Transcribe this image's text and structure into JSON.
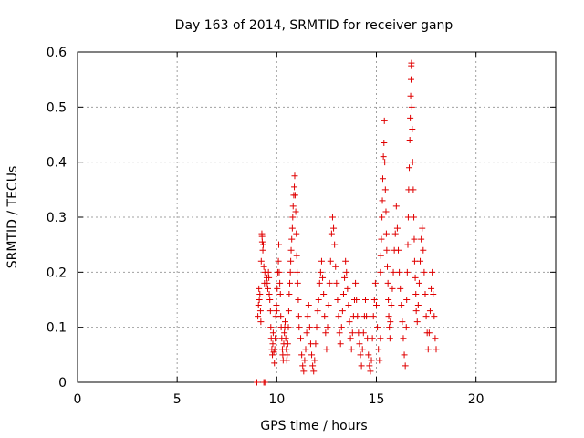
{
  "chart_data": {
    "type": "scatter",
    "title": "Day 163 of 2014, SRMTID for receiver ganp",
    "xlabel": "GPS time / hours",
    "ylabel": "SRMTID / TECUs",
    "xlim": [
      0,
      24
    ],
    "ylim": [
      0,
      0.6
    ],
    "xticks": [
      0,
      5,
      10,
      15,
      20
    ],
    "xtick_labels": [
      "0",
      "5",
      "10",
      "15",
      "20"
    ],
    "yticks": [
      0,
      0.1,
      0.2,
      0.3,
      0.4,
      0.5,
      0.6
    ],
    "ytick_labels": [
      "0",
      "0.1",
      "0.2",
      "0.3",
      "0.4",
      "0.5",
      "0.6"
    ],
    "grid": true,
    "marker": "+",
    "color": "#e00000",
    "series": [
      {
        "name": "",
        "points": [
          [
            9.0,
            0.0
          ],
          [
            9.35,
            0.0
          ],
          [
            9.4,
            0.0
          ],
          [
            9.05,
            0.12
          ],
          [
            9.08,
            0.14
          ],
          [
            9.1,
            0.17
          ],
          [
            9.12,
            0.15
          ],
          [
            9.15,
            0.16
          ],
          [
            9.18,
            0.13
          ],
          [
            9.2,
            0.11
          ],
          [
            9.22,
            0.22
          ],
          [
            9.25,
            0.27
          ],
          [
            9.26,
            0.265
          ],
          [
            9.27,
            0.255
          ],
          [
            9.3,
            0.24
          ],
          [
            9.32,
            0.25
          ],
          [
            9.35,
            0.21
          ],
          [
            9.38,
            0.18
          ],
          [
            9.4,
            0.2
          ],
          [
            9.5,
            0.19
          ],
          [
            9.52,
            0.18
          ],
          [
            9.55,
            0.17
          ],
          [
            9.58,
            0.2
          ],
          [
            9.6,
            0.19
          ],
          [
            9.62,
            0.16
          ],
          [
            9.65,
            0.15
          ],
          [
            9.68,
            0.13
          ],
          [
            9.7,
            0.1
          ],
          [
            9.72,
            0.08
          ],
          [
            9.75,
            0.06
          ],
          [
            9.78,
            0.05
          ],
          [
            9.8,
            0.07
          ],
          [
            9.82,
            0.09
          ],
          [
            9.85,
            0.055
          ],
          [
            9.88,
            0.035
          ],
          [
            9.9,
            0.06
          ],
          [
            9.92,
            0.08
          ],
          [
            9.95,
            0.12
          ],
          [
            9.98,
            0.14
          ],
          [
            10.0,
            0.13
          ],
          [
            10.02,
            0.17
          ],
          [
            10.05,
            0.2
          ],
          [
            10.08,
            0.22
          ],
          [
            10.1,
            0.25
          ],
          [
            10.12,
            0.2
          ],
          [
            10.15,
            0.18
          ],
          [
            10.18,
            0.16
          ],
          [
            10.2,
            0.12
          ],
          [
            10.22,
            0.1
          ],
          [
            10.25,
            0.08
          ],
          [
            10.28,
            0.06
          ],
          [
            10.3,
            0.05
          ],
          [
            10.32,
            0.04
          ],
          [
            10.35,
            0.07
          ],
          [
            10.38,
            0.09
          ],
          [
            10.4,
            0.1
          ],
          [
            10.42,
            0.11
          ],
          [
            10.45,
            0.08
          ],
          [
            10.48,
            0.06
          ],
          [
            10.5,
            0.04
          ],
          [
            10.52,
            0.05
          ],
          [
            10.55,
            0.07
          ],
          [
            10.58,
            0.1
          ],
          [
            10.6,
            0.13
          ],
          [
            10.62,
            0.16
          ],
          [
            10.65,
            0.18
          ],
          [
            10.68,
            0.2
          ],
          [
            10.7,
            0.22
          ],
          [
            10.72,
            0.24
          ],
          [
            10.75,
            0.26
          ],
          [
            10.78,
            0.28
          ],
          [
            10.8,
            0.3
          ],
          [
            10.82,
            0.32
          ],
          [
            10.85,
            0.34
          ],
          [
            10.88,
            0.355
          ],
          [
            10.9,
            0.375
          ],
          [
            10.92,
            0.34
          ],
          [
            10.95,
            0.31
          ],
          [
            10.98,
            0.27
          ],
          [
            11.0,
            0.23
          ],
          [
            11.02,
            0.2
          ],
          [
            11.05,
            0.18
          ],
          [
            11.08,
            0.15
          ],
          [
            11.1,
            0.12
          ],
          [
            11.12,
            0.1
          ],
          [
            11.2,
            0.08
          ],
          [
            11.25,
            0.05
          ],
          [
            11.3,
            0.03
          ],
          [
            11.35,
            0.02
          ],
          [
            11.4,
            0.04
          ],
          [
            11.45,
            0.06
          ],
          [
            11.5,
            0.09
          ],
          [
            11.55,
            0.12
          ],
          [
            11.6,
            0.14
          ],
          [
            11.65,
            0.1
          ],
          [
            11.7,
            0.07
          ],
          [
            11.75,
            0.05
          ],
          [
            11.8,
            0.03
          ],
          [
            11.85,
            0.02
          ],
          [
            11.9,
            0.04
          ],
          [
            11.95,
            0.07
          ],
          [
            12.0,
            0.1
          ],
          [
            12.05,
            0.13
          ],
          [
            12.1,
            0.15
          ],
          [
            12.15,
            0.18
          ],
          [
            12.2,
            0.2
          ],
          [
            12.25,
            0.22
          ],
          [
            12.3,
            0.19
          ],
          [
            12.35,
            0.16
          ],
          [
            12.4,
            0.12
          ],
          [
            12.45,
            0.09
          ],
          [
            12.5,
            0.06
          ],
          [
            12.55,
            0.1
          ],
          [
            12.6,
            0.14
          ],
          [
            12.65,
            0.18
          ],
          [
            12.7,
            0.22
          ],
          [
            12.75,
            0.27
          ],
          [
            12.8,
            0.3
          ],
          [
            12.85,
            0.28
          ],
          [
            12.9,
            0.25
          ],
          [
            12.95,
            0.21
          ],
          [
            13.0,
            0.18
          ],
          [
            13.05,
            0.15
          ],
          [
            13.1,
            0.12
          ],
          [
            13.15,
            0.09
          ],
          [
            13.2,
            0.07
          ],
          [
            13.25,
            0.1
          ],
          [
            13.3,
            0.13
          ],
          [
            13.35,
            0.16
          ],
          [
            13.4,
            0.19
          ],
          [
            13.45,
            0.22
          ],
          [
            13.5,
            0.2
          ],
          [
            13.55,
            0.17
          ],
          [
            13.6,
            0.14
          ],
          [
            13.65,
            0.11
          ],
          [
            13.7,
            0.08
          ],
          [
            13.75,
            0.06
          ],
          [
            13.8,
            0.09
          ],
          [
            13.85,
            0.12
          ],
          [
            13.9,
            0.15
          ],
          [
            13.95,
            0.18
          ],
          [
            14.0,
            0.15
          ],
          [
            14.05,
            0.12
          ],
          [
            14.1,
            0.09
          ],
          [
            14.15,
            0.07
          ],
          [
            14.2,
            0.05
          ],
          [
            14.25,
            0.03
          ],
          [
            14.3,
            0.06
          ],
          [
            14.35,
            0.09
          ],
          [
            14.4,
            0.12
          ],
          [
            14.45,
            0.15
          ],
          [
            14.5,
            0.12
          ],
          [
            14.55,
            0.08
          ],
          [
            14.6,
            0.05
          ],
          [
            14.65,
            0.03
          ],
          [
            14.7,
            0.02
          ],
          [
            14.75,
            0.04
          ],
          [
            14.8,
            0.08
          ],
          [
            14.85,
            0.12
          ],
          [
            14.9,
            0.15
          ],
          [
            14.95,
            0.18
          ],
          [
            15.0,
            0.14
          ],
          [
            15.05,
            0.1
          ],
          [
            15.1,
            0.06
          ],
          [
            15.15,
            0.04
          ],
          [
            15.2,
            0.08
          ],
          [
            15.2,
            0.2
          ],
          [
            15.22,
            0.23
          ],
          [
            15.25,
            0.26
          ],
          [
            15.28,
            0.3
          ],
          [
            15.3,
            0.33
          ],
          [
            15.32,
            0.37
          ],
          [
            15.35,
            0.41
          ],
          [
            15.38,
            0.435
          ],
          [
            15.4,
            0.475
          ],
          [
            15.42,
            0.4
          ],
          [
            15.45,
            0.35
          ],
          [
            15.48,
            0.31
          ],
          [
            15.5,
            0.27
          ],
          [
            15.52,
            0.24
          ],
          [
            15.55,
            0.21
          ],
          [
            15.58,
            0.18
          ],
          [
            15.6,
            0.15
          ],
          [
            15.62,
            0.12
          ],
          [
            15.65,
            0.1
          ],
          [
            15.68,
            0.08
          ],
          [
            15.7,
            0.11
          ],
          [
            15.75,
            0.14
          ],
          [
            15.8,
            0.17
          ],
          [
            15.85,
            0.2
          ],
          [
            15.9,
            0.24
          ],
          [
            15.95,
            0.27
          ],
          [
            16.0,
            0.32
          ],
          [
            16.05,
            0.28
          ],
          [
            16.1,
            0.24
          ],
          [
            16.15,
            0.2
          ],
          [
            16.2,
            0.17
          ],
          [
            16.25,
            0.14
          ],
          [
            16.3,
            0.11
          ],
          [
            16.35,
            0.08
          ],
          [
            16.4,
            0.05
          ],
          [
            16.45,
            0.03
          ],
          [
            16.5,
            0.1
          ],
          [
            16.52,
            0.15
          ],
          [
            16.55,
            0.2
          ],
          [
            16.58,
            0.25
          ],
          [
            16.6,
            0.3
          ],
          [
            16.62,
            0.35
          ],
          [
            16.65,
            0.39
          ],
          [
            16.68,
            0.44
          ],
          [
            16.7,
            0.48
          ],
          [
            16.72,
            0.52
          ],
          [
            16.74,
            0.55
          ],
          [
            16.75,
            0.575
          ],
          [
            16.76,
            0.58
          ],
          [
            16.78,
            0.5
          ],
          [
            16.8,
            0.46
          ],
          [
            16.82,
            0.4
          ],
          [
            16.85,
            0.35
          ],
          [
            16.88,
            0.3
          ],
          [
            16.9,
            0.26
          ],
          [
            16.92,
            0.22
          ],
          [
            16.95,
            0.19
          ],
          [
            16.98,
            0.16
          ],
          [
            17.0,
            0.13
          ],
          [
            17.05,
            0.11
          ],
          [
            17.1,
            0.14
          ],
          [
            17.15,
            0.18
          ],
          [
            17.2,
            0.22
          ],
          [
            17.25,
            0.26
          ],
          [
            17.3,
            0.28
          ],
          [
            17.35,
            0.24
          ],
          [
            17.4,
            0.2
          ],
          [
            17.45,
            0.16
          ],
          [
            17.5,
            0.12
          ],
          [
            17.55,
            0.09
          ],
          [
            17.6,
            0.06
          ],
          [
            17.65,
            0.09
          ],
          [
            17.7,
            0.13
          ],
          [
            17.75,
            0.17
          ],
          [
            17.8,
            0.2
          ],
          [
            17.85,
            0.16
          ],
          [
            17.9,
            0.12
          ],
          [
            17.95,
            0.08
          ],
          [
            18.0,
            0.06
          ]
        ]
      }
    ]
  }
}
